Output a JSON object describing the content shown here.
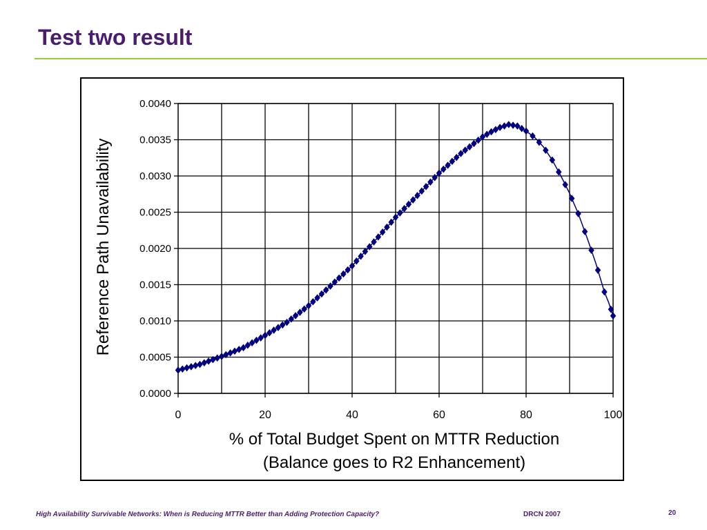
{
  "slide": {
    "title": "Test two result",
    "footer_left": "High Availability Survivable Networks: When is Reducing MTTR Better than Adding Protection Capacity?",
    "footer_mid": "DRCN 2007",
    "page_number": "20"
  },
  "colors": {
    "title": "#4b1d6e",
    "rule": "#99cc33",
    "series": "#000080",
    "grid": "#000000"
  },
  "chart_data": {
    "type": "line",
    "title": "",
    "xlabel": "% of Total Budget Spent on MTTR Reduction",
    "xlabel_line2": "(Balance goes to R2 Enhancement)",
    "ylabel": "Reference Path Unavailability",
    "xlim": [
      0,
      100
    ],
    "ylim": [
      0,
      0.004
    ],
    "x_ticks": [
      "0",
      "20",
      "40",
      "60",
      "80",
      "100"
    ],
    "y_ticks": [
      "0.0000",
      "0.0005",
      "0.0010",
      "0.0015",
      "0.0020",
      "0.0025",
      "0.0030",
      "0.0035",
      "0.0040"
    ],
    "grid": true,
    "marker": "diamond",
    "series": [
      {
        "x": [
          0,
          5,
          10,
          15,
          20,
          25,
          30,
          35,
          40,
          45,
          50,
          55,
          60,
          65,
          70,
          72,
          74,
          76,
          78,
          80,
          82,
          84,
          86,
          88,
          90,
          92,
          94,
          96,
          98,
          99,
          100
        ],
        "values": [
          0.00032,
          0.0004,
          0.00051,
          0.00063,
          0.0008,
          0.00098,
          0.00121,
          0.00148,
          0.00176,
          0.00209,
          0.00243,
          0.00273,
          0.00304,
          0.00331,
          0.00354,
          0.00361,
          0.00367,
          0.00371,
          0.00369,
          0.00362,
          0.00353,
          0.0034,
          0.00322,
          0.003,
          0.00276,
          0.00248,
          0.00215,
          0.0018,
          0.0014,
          0.00125,
          0.00107
        ]
      }
    ]
  }
}
